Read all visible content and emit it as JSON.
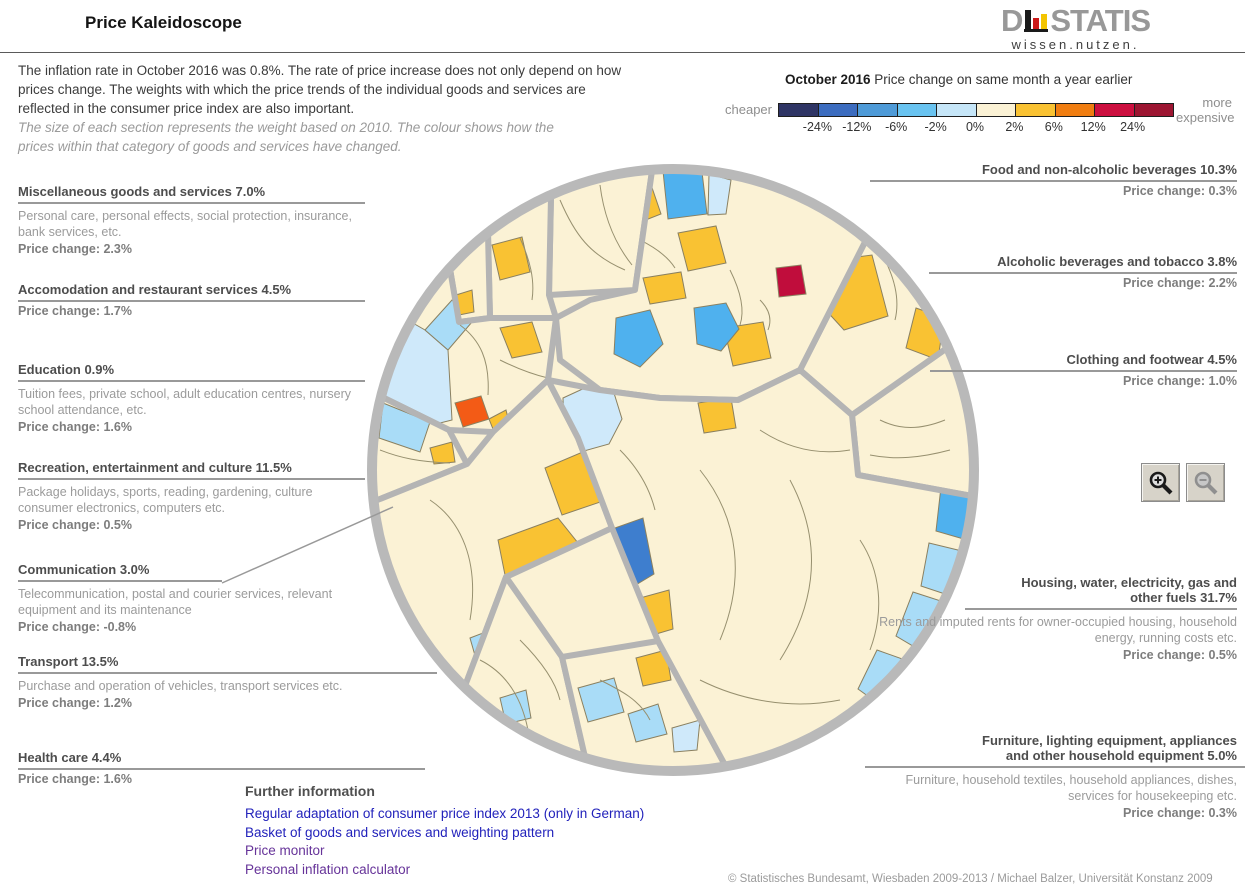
{
  "header": {
    "title": "Price Kaleidoscope",
    "logo": {
      "d": "D",
      "statis": "STATIS",
      "tagline": "wissen.nutzen."
    }
  },
  "intro": {
    "main": "The inflation rate in October 2016 was 0.8%. The rate of price increase does not only depend on how prices change. The weights with which the price trends of the individual goods and services are reflected in the consumer price index are also important.",
    "note": "The size of each section represents the weight based on 2010. The colour shows how the prices within that category of goods and services have changed."
  },
  "legend": {
    "month": "October 2016",
    "subtitle": " Price change on same month a year earlier",
    "cheaper": "cheaper",
    "more_expensive": "more expensive",
    "ticks": [
      "-24%",
      "-12%",
      "-6%",
      "-2%",
      "0%",
      "2%",
      "6%",
      "12%",
      "24%"
    ],
    "colors": [
      "#2F3565",
      "#3C6CBF",
      "#4E9AD7",
      "#69C3F0",
      "#C6E6F8",
      "#FBF2D5",
      "#F9C233",
      "#F07D11",
      "#CC1040",
      "#9C1531"
    ]
  },
  "left_labels": [
    {
      "title": "Miscellaneous goods and services 7.0%",
      "desc": "Personal care, personal effects, social protection, insurance, bank services, etc.",
      "change": "Price change: 2.3%"
    },
    {
      "title": "Accomodation and restaurant services 4.5%",
      "desc": "",
      "change": "Price change: 1.7%"
    },
    {
      "title": "Education 0.9%",
      "desc": "Tuition fees, private school, adult education centres, nursery school attendance, etc.",
      "change": "Price change: 1.6%"
    },
    {
      "title": "Recreation, entertainment and culture 11.5%",
      "desc": "Package holidays, sports, reading, gardening, culture consumer electronics, computers etc.",
      "change": "Price change: 0.5%"
    },
    {
      "title": "Communication 3.0%",
      "desc": "Telecommunication, postal and courier services, relevant equipment and its maintenance",
      "change": "Price change: -0.8%"
    },
    {
      "title": "Transport 13.5%",
      "desc": "Purchase and operation of vehicles, transport services etc.",
      "change": "Price change: 1.2%"
    },
    {
      "title": "Health care 4.4%",
      "desc": "",
      "change": "Price change: 1.6%"
    }
  ],
  "right_labels": [
    {
      "title": "Food and non-alcoholic beverages 10.3%",
      "desc": "",
      "change": "Price change: 0.3%"
    },
    {
      "title": "Alcoholic beverages and tobacco 3.8%",
      "desc": "",
      "change": "Price change: 2.2%"
    },
    {
      "title": "Clothing and footwear 4.5%",
      "desc": "",
      "change": "Price change: 1.0%"
    },
    {
      "title": "Housing, water, electricity, gas and other fuels 31.7%",
      "desc": "Rents and imputed rents for owner-occupied housing, household energy, running costs etc.",
      "change": "Price change: 0.5%"
    },
    {
      "title": "Furniture, lighting equipment, appliances and other household equipment 5.0%",
      "desc": "Furniture, household textiles, household appliances, dishes, services for housekeeping etc.",
      "change": "Price change: 0.3%"
    }
  ],
  "further": {
    "heading": "Further information",
    "links": [
      {
        "label": "Regular adaptation of consumer price index 2013 (only in German)",
        "color": "#2222bb"
      },
      {
        "label": "Basket of goods and services and weighting pattern",
        "color": "#2222bb"
      },
      {
        "label": "Price monitor",
        "color": "#663399"
      },
      {
        "label": "Personal inflation calculator",
        "color": "#663399"
      }
    ]
  },
  "footer": "© Statistisches Bundesamt, Wiesbaden 2009-2013 / Michael Balzer, Universität Konstanz 2009",
  "chart_data": {
    "type": "voronoi-treemap",
    "title": "Price Kaleidoscope",
    "period": "October 2016",
    "measure": "Price change on same month a year earlier",
    "overall_inflation_rate_pct": 0.8,
    "size_meaning": "Section size represents the weight based on 2010",
    "color_meaning": "Colour shows price change of that category",
    "legend_stops_pct": [
      -24,
      -12,
      -6,
      -2,
      0,
      2,
      6,
      12,
      24
    ],
    "legend_colors": [
      "#2F3565",
      "#3C6CBF",
      "#4E9AD7",
      "#69C3F0",
      "#C6E6F8",
      "#FBF2D5",
      "#F9C233",
      "#F07D11",
      "#CC1040",
      "#9C1531"
    ],
    "palette": {
      "cream": "#FBF2D5",
      "gold": "#F9C233",
      "lb": "#A9DCF7",
      "pb": "#CFE9FA",
      "mb": "#4FB1EE",
      "rb": "#3E7ECE",
      "or": "#F35B16",
      "cr": "#C00D3C",
      "border": "#B4B4B4",
      "ring": "#B9B9B9",
      "cellline": "#97906F"
    },
    "categories": [
      {
        "name": "Food and non-alcoholic beverages",
        "weight_pct": 10.3,
        "price_change_pct": 0.3
      },
      {
        "name": "Alcoholic beverages and tobacco",
        "weight_pct": 3.8,
        "price_change_pct": 2.2
      },
      {
        "name": "Clothing and footwear",
        "weight_pct": 4.5,
        "price_change_pct": 1.0
      },
      {
        "name": "Housing, water, electricity, gas and other fuels",
        "weight_pct": 31.7,
        "price_change_pct": 0.5,
        "description": "Rents and imputed rents for owner-occupied housing, household energy, running costs etc."
      },
      {
        "name": "Furniture, lighting equipment, appliances and other household equipment",
        "weight_pct": 5.0,
        "price_change_pct": 0.3,
        "description": "Furniture, household textiles, household appliances, dishes, services for housekeeping etc."
      },
      {
        "name": "Health care",
        "weight_pct": 4.4,
        "price_change_pct": 1.6
      },
      {
        "name": "Transport",
        "weight_pct": 13.5,
        "price_change_pct": 1.2,
        "description": "Purchase and operation of vehicles, transport services etc."
      },
      {
        "name": "Communication",
        "weight_pct": 3.0,
        "price_change_pct": -0.8,
        "description": "Telecommunication, postal and courier services, relevant equipment and its maintenance"
      },
      {
        "name": "Recreation, entertainment and culture",
        "weight_pct": 11.5,
        "price_change_pct": 0.5,
        "description": "Package holidays, sports, reading, gardening, culture consumer electronics, computers etc."
      },
      {
        "name": "Education",
        "weight_pct": 0.9,
        "price_change_pct": 1.6,
        "description": "Tuition fees, private school, adult education centres, nursery school attendance, etc."
      },
      {
        "name": "Accomodation and restaurant services",
        "weight_pct": 4.5,
        "price_change_pct": 1.7
      },
      {
        "name": "Miscellaneous goods and services",
        "weight_pct": 7.0,
        "price_change_pct": 2.3,
        "description": "Personal care, personal effects, social protection, insurance, bank services, etc."
      }
    ]
  }
}
